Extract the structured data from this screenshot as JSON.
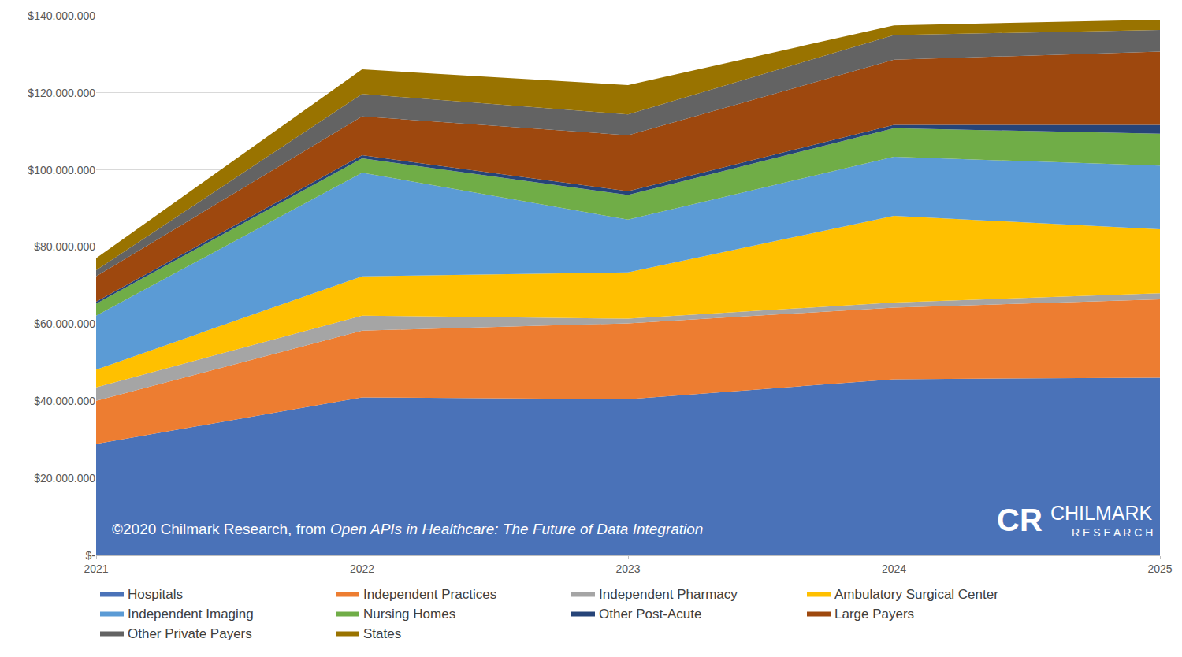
{
  "chart_data": {
    "type": "area",
    "stacked": true,
    "grid": true,
    "legend": "bottom",
    "x": [
      2021,
      2022,
      2023,
      2024,
      2025
    ],
    "xlim": [
      2021,
      2025
    ],
    "xticks": [
      2021,
      2022,
      2023,
      2024,
      2025
    ],
    "ylim": [
      0,
      140000000
    ],
    "yticks": [
      {
        "value": 0,
        "label": "$-"
      },
      {
        "value": 20000000,
        "label": "$20.000.000"
      },
      {
        "value": 40000000,
        "label": "$40.000.000"
      },
      {
        "value": 60000000,
        "label": "$60.000.000"
      },
      {
        "value": 80000000,
        "label": "$80.000.000"
      },
      {
        "value": 100000000,
        "label": "$100.000.000"
      },
      {
        "value": 120000000,
        "label": "$120.000.000"
      },
      {
        "value": 140000000,
        "label": "$140.000.000"
      }
    ],
    "annotations": {
      "source": "©2020 Chilmark Research, from",
      "source_title": "Open APIs in Healthcare: The Future of Data Integration",
      "logo_mark": "CR",
      "logo_name": "CHILMARK",
      "logo_sub": "RESEARCH"
    },
    "series": [
      {
        "name": "Hospitals",
        "color": "#4a72b8",
        "values": [
          28900000,
          41000000,
          40500000,
          45700000,
          46100000
        ]
      },
      {
        "name": "Independent Practices",
        "color": "#ed7d31",
        "values": [
          11200000,
          17300000,
          19700000,
          18600000,
          20300000
        ]
      },
      {
        "name": "Independent Pharmacy",
        "color": "#a5a5a5",
        "values": [
          3500000,
          3900000,
          1200000,
          1300000,
          1600000
        ]
      },
      {
        "name": "Ambulatory Surgical Center",
        "color": "#ffc000",
        "values": [
          4600000,
          10200000,
          12000000,
          22500000,
          16600000
        ]
      },
      {
        "name": "Independent Imaging",
        "color": "#5b9bd5",
        "values": [
          14000000,
          26900000,
          13700000,
          15300000,
          16500000
        ]
      },
      {
        "name": "Nursing Homes",
        "color": "#70ad47",
        "values": [
          3100000,
          3700000,
          6400000,
          7400000,
          8300000
        ]
      },
      {
        "name": "Other Post-Acute",
        "color": "#264478",
        "values": [
          500000,
          800000,
          1000000,
          900000,
          2300000
        ]
      },
      {
        "name": "Large Payers",
        "color": "#9e480e",
        "values": [
          6600000,
          10100000,
          14500000,
          16900000,
          19000000
        ]
      },
      {
        "name": "Other Private Payers",
        "color": "#636363",
        "values": [
          1600000,
          5800000,
          5400000,
          6400000,
          5600000
        ]
      },
      {
        "name": "States",
        "color": "#997300",
        "values": [
          3100000,
          6400000,
          7600000,
          2500000,
          2700000
        ]
      }
    ]
  }
}
